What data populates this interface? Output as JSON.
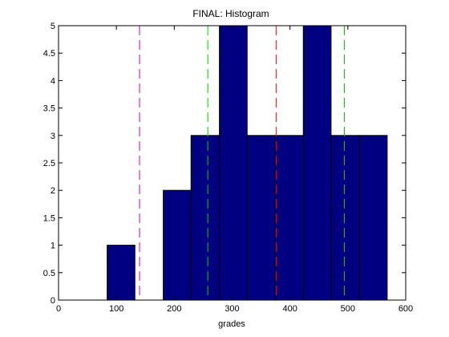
{
  "chart_data": {
    "type": "bar",
    "title": "FINAL: Histogram",
    "xlabel": "grades",
    "ylabel": "",
    "xlim": [
      0,
      600
    ],
    "ylim": [
      0,
      5
    ],
    "xticks": [
      "0",
      "100",
      "200",
      "300",
      "400",
      "500",
      "600"
    ],
    "yticks": [
      "0",
      "0.5",
      "1",
      "1.5",
      "2",
      "2.5",
      "3",
      "3.5",
      "4",
      "4.5",
      "5"
    ],
    "grid": false,
    "bar_color": "#000080",
    "bins": [
      {
        "x0": 84,
        "x1": 132,
        "value": 1
      },
      {
        "x0": 132,
        "x1": 181,
        "value": 0
      },
      {
        "x0": 181,
        "x1": 229,
        "value": 2
      },
      {
        "x0": 229,
        "x1": 278,
        "value": 3
      },
      {
        "x0": 278,
        "x1": 326,
        "value": 5
      },
      {
        "x0": 326,
        "x1": 374,
        "value": 3
      },
      {
        "x0": 374,
        "x1": 423,
        "value": 3
      },
      {
        "x0": 423,
        "x1": 471,
        "value": 5
      },
      {
        "x0": 471,
        "x1": 520,
        "value": 3
      },
      {
        "x0": 520,
        "x1": 568,
        "value": 3
      }
    ],
    "reference_lines": [
      {
        "x": 140,
        "color": "#cc00cc",
        "style": "dashed"
      },
      {
        "x": 258,
        "color": "#00cc00",
        "style": "dashed"
      },
      {
        "x": 376,
        "color": "#ff0000",
        "style": "dashed"
      },
      {
        "x": 494,
        "color": "#00cc00",
        "style": "dashed"
      }
    ]
  }
}
